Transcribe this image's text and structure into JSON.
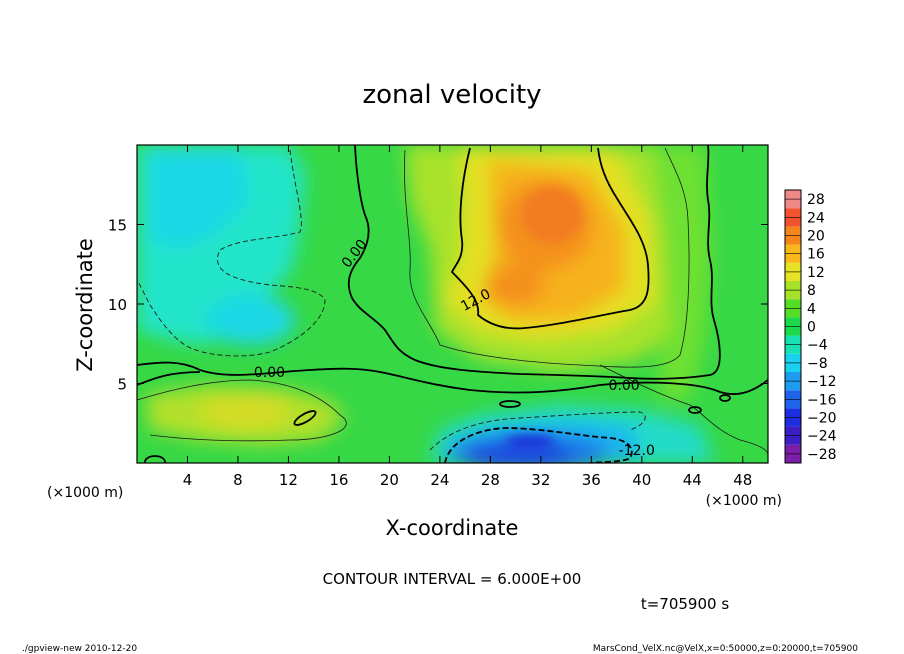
{
  "chart_data": {
    "type": "heatmap",
    "title": "zonal velocity",
    "xlabel": "X-coordinate",
    "ylabel": "Z-coordinate",
    "x_unit": "(×1000 m)",
    "y_unit": "(×1000 m)",
    "xlim": [
      0,
      50
    ],
    "ylim": [
      0,
      20
    ],
    "x_ticks": [
      4,
      8,
      12,
      16,
      20,
      24,
      28,
      32,
      36,
      40,
      44,
      48
    ],
    "y_ticks": [
      5,
      10,
      15
    ],
    "colorbar": {
      "levels": [
        -28,
        -24,
        -20,
        -16,
        -12,
        -8,
        -4,
        0,
        4,
        8,
        12,
        16,
        20,
        24,
        28
      ],
      "colors": [
        "#7b1fa8",
        "#3b1fc4",
        "#1c2ee0",
        "#1f63ea",
        "#1e9cf0",
        "#18d2f0",
        "#18e2b4",
        "#1cd84a",
        "#54de26",
        "#a6e22a",
        "#e6e224",
        "#f8b81c",
        "#f5861e",
        "#f25230",
        "#f08888"
      ]
    },
    "contour_labels": [
      {
        "text": "0.00",
        "x": 17.5,
        "y": 13.0,
        "rotate": -52
      },
      {
        "text": "12.0",
        "x": 27.0,
        "y": 10.0,
        "rotate": -28
      },
      {
        "text": "0.00",
        "x": 10.5,
        "y": 5.4,
        "rotate": 0
      },
      {
        "text": "0.00",
        "x": 38.6,
        "y": 4.6,
        "rotate": 0
      },
      {
        "text": "-12.0",
        "x": 39.6,
        "y": 0.5,
        "rotate": 0
      }
    ],
    "contour_interval_text": "CONTOUR INTERVAL = 6.000E+00",
    "time_text": "t=705900 s"
  },
  "footer": {
    "left": "./gpview-new  2010-12-20",
    "right": "MarsCond_VelX.nc@VelX,x=0:50000,z=0:20000,t=705900"
  }
}
